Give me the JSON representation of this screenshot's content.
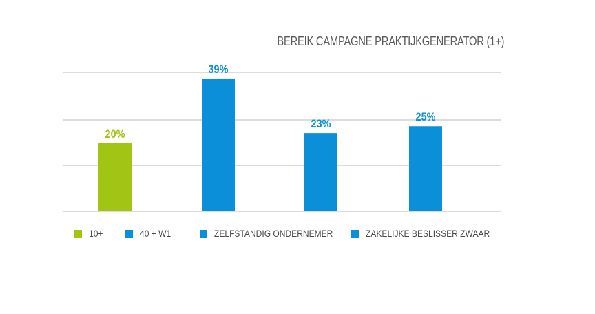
{
  "chart_data": {
    "type": "bar",
    "title": "BEREIK CAMPAGNE PRAKTIJKGENERATOR (1+)",
    "categories": [
      "10+",
      "40 + W1",
      "ZELFSTANDIG ONDERNEMER",
      "ZAKELIJKE BESLISSER ZWAAR"
    ],
    "values": [
      20,
      39,
      23,
      25
    ],
    "data_labels": [
      "20%",
      "39%",
      "23%",
      "25%"
    ],
    "colors": [
      "#a2c414",
      "#0a8fd8",
      "#0a8fd8",
      "#0a8fd8"
    ],
    "ylim": [
      0,
      40
    ],
    "grid": true,
    "legend_position": "bottom",
    "xlabel": "",
    "ylabel": ""
  }
}
